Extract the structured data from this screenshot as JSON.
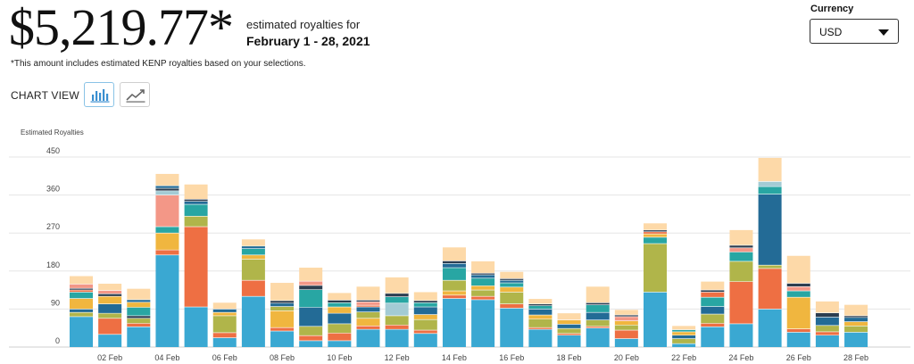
{
  "header": {
    "amount": "$5,219.77*",
    "estimated_label": "estimated royalties for",
    "date_range": "February 1 - 28, 2021",
    "note": "*This amount includes estimated KENP royalties based on your selections."
  },
  "currency": {
    "label": "Currency",
    "value": "USD"
  },
  "chart_view": {
    "label": "CHART VIEW",
    "buttons": [
      {
        "icon": "bar-chart-icon",
        "active": true
      },
      {
        "icon": "line-chart-icon",
        "active": false
      }
    ]
  },
  "colors": {
    "blue": "#3aa8d2",
    "orange": "#ee6f43",
    "green": "#b0b54a",
    "yellow": "#f0b63f",
    "teal": "#28a6a3",
    "navy": "#236b96",
    "peach": "#fdd9a8",
    "salmon": "#f39787",
    "lightblue": "#a3cbd4",
    "dark": "#2c3e50",
    "gridline": "#e5e5e5"
  },
  "chart_data": {
    "type": "bar",
    "ylabel": "Estimated Royalties",
    "ylim": [
      0,
      450
    ],
    "yticks": [
      "0",
      "90",
      "180",
      "270",
      "360",
      "450"
    ],
    "xtick_labels": [
      "02 Feb",
      "04 Feb",
      "06 Feb",
      "08 Feb",
      "10 Feb",
      "12 Feb",
      "14 Feb",
      "16 Feb",
      "18 Feb",
      "20 Feb",
      "22 Feb",
      "24 Feb",
      "26 Feb",
      "28 Feb"
    ],
    "categories": [
      "01 Feb",
      "02 Feb",
      "03 Feb",
      "04 Feb",
      "05 Feb",
      "06 Feb",
      "07 Feb",
      "08 Feb",
      "09 Feb",
      "10 Feb",
      "11 Feb",
      "12 Feb",
      "13 Feb",
      "14 Feb",
      "15 Feb",
      "16 Feb",
      "17 Feb",
      "18 Feb",
      "19 Feb",
      "20 Feb",
      "21 Feb",
      "22 Feb",
      "23 Feb",
      "24 Feb",
      "25 Feb",
      "26 Feb",
      "27 Feb",
      "28 Feb"
    ],
    "totals": [
      168,
      150,
      138,
      410,
      385,
      105,
      255,
      152,
      188,
      128,
      143,
      165,
      130,
      236,
      203,
      178,
      114,
      80,
      143,
      88,
      293,
      50,
      155,
      277,
      448,
      216,
      108,
      100
    ],
    "stacks": [
      [
        [
          "blue",
          72
        ],
        [
          "green",
          10
        ],
        [
          "navy",
          8
        ],
        [
          "yellow",
          25
        ],
        [
          "teal",
          15
        ],
        [
          "orange",
          5
        ],
        [
          "dark",
          4
        ],
        [
          "salmon",
          10
        ],
        [
          "peach",
          19
        ]
      ],
      [
        [
          "blue",
          30
        ],
        [
          "orange",
          38
        ],
        [
          "green",
          12
        ],
        [
          "navy",
          22
        ],
        [
          "yellow",
          18
        ],
        [
          "dark",
          6
        ],
        [
          "salmon",
          8
        ],
        [
          "peach",
          16
        ]
      ],
      [
        [
          "blue",
          48
        ],
        [
          "orange",
          8
        ],
        [
          "green",
          12
        ],
        [
          "dark",
          6
        ],
        [
          "teal",
          20
        ],
        [
          "yellow",
          12
        ],
        [
          "navy",
          6
        ],
        [
          "peach",
          26
        ]
      ],
      [
        [
          "blue",
          218
        ],
        [
          "orange",
          12
        ],
        [
          "yellow",
          40
        ],
        [
          "teal",
          15
        ],
        [
          "salmon",
          75
        ],
        [
          "lightblue",
          10
        ],
        [
          "dark",
          6
        ],
        [
          "navy",
          6
        ],
        [
          "peach",
          28
        ]
      ],
      [
        [
          "blue",
          95
        ],
        [
          "orange",
          190
        ],
        [
          "green",
          25
        ],
        [
          "teal",
          28
        ],
        [
          "navy",
          7
        ],
        [
          "dark",
          5
        ],
        [
          "peach",
          35
        ]
      ],
      [
        [
          "blue",
          22
        ],
        [
          "orange",
          12
        ],
        [
          "green",
          40
        ],
        [
          "yellow",
          8
        ],
        [
          "navy",
          8
        ],
        [
          "peach",
          15
        ]
      ],
      [
        [
          "blue",
          120
        ],
        [
          "orange",
          38
        ],
        [
          "green",
          50
        ],
        [
          "yellow",
          10
        ],
        [
          "teal",
          15
        ],
        [
          "navy",
          6
        ],
        [
          "peach",
          16
        ]
      ],
      [
        [
          "blue",
          38
        ],
        [
          "orange",
          8
        ],
        [
          "yellow",
          40
        ],
        [
          "green",
          10
        ],
        [
          "navy",
          8
        ],
        [
          "dark",
          6
        ],
        [
          "peach",
          42
        ]
      ],
      [
        [
          "blue",
          15
        ],
        [
          "orange",
          12
        ],
        [
          "green",
          22
        ],
        [
          "navy",
          45
        ],
        [
          "teal",
          42
        ],
        [
          "dark",
          10
        ],
        [
          "salmon",
          10
        ],
        [
          "peach",
          32
        ]
      ],
      [
        [
          "blue",
          15
        ],
        [
          "orange",
          18
        ],
        [
          "green",
          22
        ],
        [
          "navy",
          25
        ],
        [
          "yellow",
          15
        ],
        [
          "teal",
          10
        ],
        [
          "dark",
          6
        ],
        [
          "peach",
          17
        ]
      ],
      [
        [
          "blue",
          42
        ],
        [
          "orange",
          8
        ],
        [
          "yellow",
          18
        ],
        [
          "green",
          15
        ],
        [
          "navy",
          12
        ],
        [
          "orange",
          4
        ],
        [
          "salmon",
          8
        ],
        [
          "dark",
          4
        ],
        [
          "peach",
          32
        ]
      ],
      [
        [
          "blue",
          42
        ],
        [
          "orange",
          10
        ],
        [
          "green",
          22
        ],
        [
          "lightblue",
          30
        ],
        [
          "teal",
          15
        ],
        [
          "dark",
          8
        ],
        [
          "peach",
          38
        ]
      ],
      [
        [
          "blue",
          32
        ],
        [
          "orange",
          8
        ],
        [
          "green",
          25
        ],
        [
          "yellow",
          12
        ],
        [
          "navy",
          18
        ],
        [
          "teal",
          10
        ],
        [
          "dark",
          5
        ],
        [
          "peach",
          20
        ]
      ],
      [
        [
          "blue",
          115
        ],
        [
          "orange",
          8
        ],
        [
          "yellow",
          10
        ],
        [
          "green",
          25
        ],
        [
          "teal",
          30
        ],
        [
          "navy",
          10
        ],
        [
          "dark",
          6
        ],
        [
          "peach",
          32
        ]
      ],
      [
        [
          "blue",
          112
        ],
        [
          "orange",
          8
        ],
        [
          "green",
          15
        ],
        [
          "yellow",
          10
        ],
        [
          "teal",
          18
        ],
        [
          "navy",
          8
        ],
        [
          "dark",
          4
        ],
        [
          "peach",
          28
        ]
      ],
      [
        [
          "blue",
          92
        ],
        [
          "orange",
          10
        ],
        [
          "green",
          28
        ],
        [
          "yellow",
          12
        ],
        [
          "teal",
          10
        ],
        [
          "navy",
          6
        ],
        [
          "dark",
          4
        ],
        [
          "peach",
          16
        ]
      ],
      [
        [
          "blue",
          42
        ],
        [
          "orange",
          4
        ],
        [
          "green",
          20
        ],
        [
          "yellow",
          10
        ],
        [
          "navy",
          14
        ],
        [
          "teal",
          8
        ],
        [
          "dark",
          4
        ],
        [
          "peach",
          12
        ]
      ],
      [
        [
          "blue",
          28
        ],
        [
          "orange",
          4
        ],
        [
          "green",
          12
        ],
        [
          "navy",
          10
        ],
        [
          "yellow",
          10
        ],
        [
          "peach",
          16
        ]
      ],
      [
        [
          "blue",
          45
        ],
        [
          "orange",
          4
        ],
        [
          "green",
          15
        ],
        [
          "navy",
          18
        ],
        [
          "teal",
          18
        ],
        [
          "dark",
          5
        ],
        [
          "peach",
          38
        ]
      ],
      [
        [
          "blue",
          20
        ],
        [
          "orange",
          20
        ],
        [
          "green",
          12
        ],
        [
          "yellow",
          10
        ],
        [
          "salmon",
          10
        ],
        [
          "dark",
          4
        ],
        [
          "peach",
          12
        ]
      ],
      [
        [
          "blue",
          130
        ],
        [
          "green",
          115
        ],
        [
          "teal",
          15
        ],
        [
          "yellow",
          8
        ],
        [
          "orange",
          5
        ],
        [
          "dark",
          4
        ],
        [
          "peach",
          16
        ]
      ],
      [
        [
          "blue",
          8
        ],
        [
          "green",
          12
        ],
        [
          "navy",
          8
        ],
        [
          "yellow",
          8
        ],
        [
          "teal",
          5
        ],
        [
          "peach",
          9
        ]
      ],
      [
        [
          "blue",
          48
        ],
        [
          "orange",
          8
        ],
        [
          "green",
          22
        ],
        [
          "navy",
          18
        ],
        [
          "teal",
          22
        ],
        [
          "orange",
          12
        ],
        [
          "dark",
          5
        ],
        [
          "peach",
          20
        ]
      ],
      [
        [
          "blue",
          55
        ],
        [
          "orange",
          100
        ],
        [
          "green",
          48
        ],
        [
          "teal",
          22
        ],
        [
          "salmon",
          10
        ],
        [
          "dark",
          6
        ],
        [
          "peach",
          36
        ]
      ],
      [
        [
          "blue",
          90
        ],
        [
          "orange",
          96
        ],
        [
          "green",
          8
        ],
        [
          "navy",
          168
        ],
        [
          "teal",
          18
        ],
        [
          "lightblue",
          12
        ],
        [
          "peach",
          56
        ]
      ],
      [
        [
          "blue",
          35
        ],
        [
          "orange",
          8
        ],
        [
          "yellow",
          75
        ],
        [
          "teal",
          15
        ],
        [
          "salmon",
          10
        ],
        [
          "dark",
          8
        ],
        [
          "peach",
          65
        ]
      ],
      [
        [
          "blue",
          28
        ],
        [
          "orange",
          8
        ],
        [
          "green",
          15
        ],
        [
          "navy",
          20
        ],
        [
          "dark",
          10
        ],
        [
          "peach",
          27
        ]
      ],
      [
        [
          "blue",
          35
        ],
        [
          "green",
          15
        ],
        [
          "yellow",
          10
        ],
        [
          "navy",
          10
        ],
        [
          "dark",
          4
        ],
        [
          "peach",
          26
        ]
      ]
    ]
  }
}
